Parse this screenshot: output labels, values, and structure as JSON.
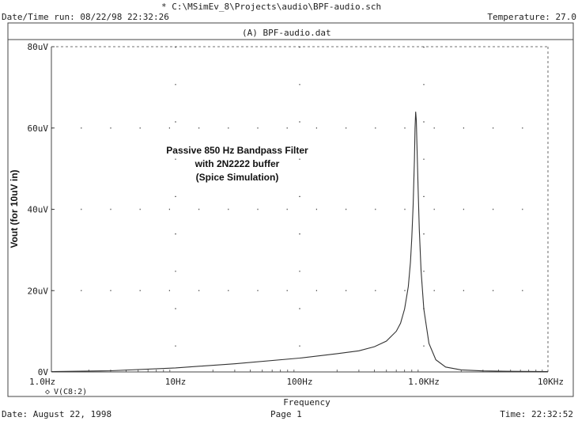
{
  "header": {
    "file_path": "* C:\\MSimEv_8\\Projects\\audio\\BPF-audio.sch",
    "run_datetime": "Date/Time run: 08/22/98 22:32:26",
    "temperature": "Temperature: 27.0",
    "dataset": "(A) BPF-audio.dat"
  },
  "footer": {
    "date": "Date: August 22, 1998",
    "page": "Page 1",
    "time": "Time: 22:32:52"
  },
  "annotation": {
    "line1": "Passive 850 Hz Bandpass Filter",
    "line2": "with 2N2222 buffer",
    "line3": "(Spice Simulation)"
  },
  "colors": {
    "trace": "#333333",
    "grid": "#555555",
    "frame": "#444444"
  },
  "chart_data": {
    "type": "line",
    "xscale": "log",
    "xlabel": "Frequency",
    "ylabel": "Vout (for 10uV in)",
    "xlim_hz": [
      1,
      10000
    ],
    "ylim_uV": [
      0,
      80
    ],
    "x_tick_labels": [
      "1.0Hz",
      "10Hz",
      "100Hz",
      "1.0KHz",
      "10KHz"
    ],
    "x_tick_values_hz": [
      1,
      10,
      100,
      1000,
      10000
    ],
    "y_tick_labels": [
      "0V",
      "20uV",
      "40uV",
      "60uV",
      "80uV"
    ],
    "y_tick_values_uV": [
      0,
      20,
      40,
      60,
      80
    ],
    "legend": "V(C8:2)",
    "series": [
      {
        "name": "V(C8:2)",
        "x_hz": [
          1,
          3,
          10,
          30,
          100,
          200,
          300,
          400,
          500,
          600,
          650,
          700,
          750,
          780,
          800,
          820,
          840,
          850,
          860,
          870,
          880,
          900,
          920,
          950,
          1000,
          1100,
          1250,
          1500,
          2000,
          3000,
          5000,
          10000
        ],
        "y_uV": [
          0.1,
          0.3,
          1.0,
          2.0,
          3.4,
          4.5,
          5.2,
          6.2,
          7.6,
          10.0,
          12.0,
          15.5,
          21.0,
          27.0,
          33.0,
          41.0,
          52.0,
          60.0,
          64.0,
          62.0,
          56.0,
          45.0,
          35.0,
          25.0,
          15.5,
          7.0,
          3.0,
          1.2,
          0.5,
          0.25,
          0.15,
          0.1
        ]
      }
    ]
  }
}
